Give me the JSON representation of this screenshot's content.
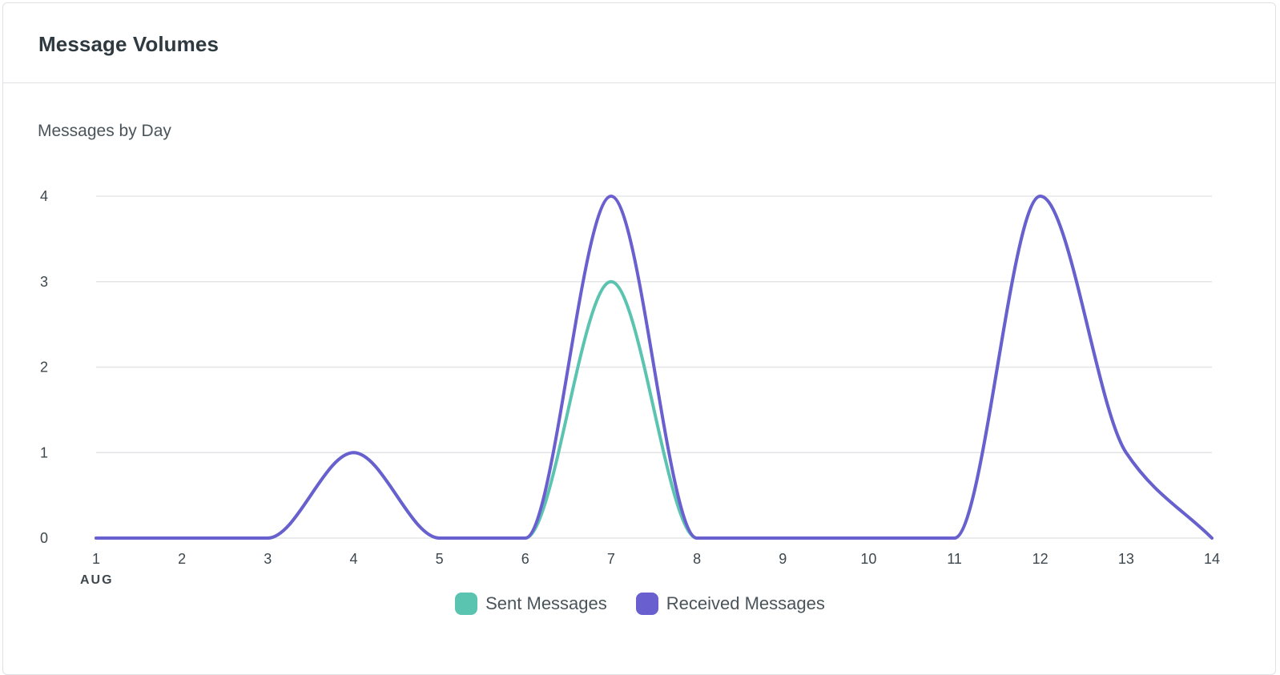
{
  "card": {
    "title": "Message Volumes"
  },
  "chart_data": {
    "type": "line",
    "title": "Messages by Day",
    "x": [
      1,
      2,
      3,
      4,
      5,
      6,
      7,
      8,
      9,
      10,
      11,
      12,
      13,
      14
    ],
    "x_tick_labels": [
      "1",
      "2",
      "3",
      "4",
      "5",
      "6",
      "7",
      "8",
      "9",
      "10",
      "11",
      "12",
      "13",
      "14"
    ],
    "x_month_label": "AUG",
    "ylim": [
      0,
      4
    ],
    "y_ticks": [
      0,
      1,
      2,
      3,
      4
    ],
    "grid": true,
    "legend_position": "bottom-center",
    "series": [
      {
        "name": "Sent Messages",
        "color": "#5bc4b0",
        "values": [
          0,
          0,
          0,
          1,
          0,
          0,
          3,
          0,
          0,
          0,
          0,
          4,
          1,
          0
        ]
      },
      {
        "name": "Received Messages",
        "color": "#6a5fcf",
        "values": [
          0,
          0,
          0,
          1,
          0,
          0,
          4,
          0,
          0,
          0,
          0,
          4,
          1,
          0
        ]
      }
    ]
  }
}
